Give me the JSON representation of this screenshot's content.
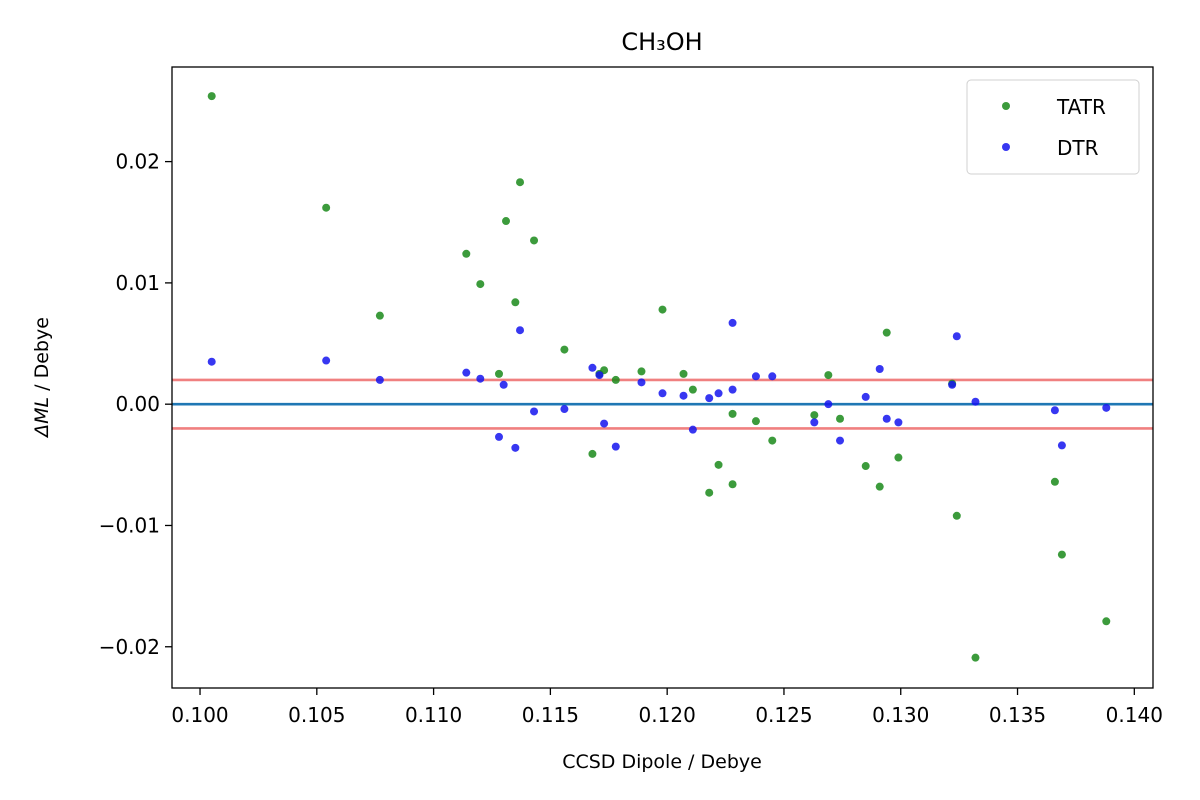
{
  "chart_data": {
    "type": "scatter",
    "title": "CH₃OH",
    "xlabel": "CCSD Dipole / Debye",
    "ylabel_symbol": "ΔML",
    "ylabel_unit": " / Debye",
    "xlim": [
      0.0988,
      0.1408
    ],
    "ylim": [
      -0.0234,
      0.0278
    ],
    "xticks": [
      0.1,
      0.105,
      0.11,
      0.115,
      0.12,
      0.125,
      0.13,
      0.135,
      0.14
    ],
    "xtick_labels": [
      "0.100",
      "0.105",
      "0.110",
      "0.115",
      "0.120",
      "0.125",
      "0.130",
      "0.135",
      "0.140"
    ],
    "yticks": [
      -0.02,
      -0.01,
      0.0,
      0.01,
      0.02
    ],
    "ytick_labels": [
      "−0.02",
      "−0.01",
      "0.00",
      "0.01",
      "0.02"
    ],
    "grid": false,
    "legend_position": "top-right",
    "hlines": [
      {
        "y": 0.0,
        "color": "#1f77b4"
      },
      {
        "y": 0.002,
        "color": "#f08080"
      },
      {
        "y": -0.002,
        "color": "#f08080"
      }
    ],
    "series": [
      {
        "name": "TATR",
        "color": "#1a8a1a",
        "points": [
          [
            0.1005,
            0.0254
          ],
          [
            0.1054,
            0.0162
          ],
          [
            0.1077,
            0.0073
          ],
          [
            0.1114,
            0.0124
          ],
          [
            0.112,
            0.0099
          ],
          [
            0.1128,
            0.0025
          ],
          [
            0.1131,
            0.0151
          ],
          [
            0.1135,
            0.0084
          ],
          [
            0.1137,
            0.0183
          ],
          [
            0.1143,
            0.0135
          ],
          [
            0.1156,
            0.0045
          ],
          [
            0.1168,
            -0.0041
          ],
          [
            0.1171,
            0.0025
          ],
          [
            0.1173,
            0.0028
          ],
          [
            0.1178,
            0.002
          ],
          [
            0.1189,
            0.0027
          ],
          [
            0.1198,
            0.0078
          ],
          [
            0.1207,
            0.0025
          ],
          [
            0.1211,
            0.0012
          ],
          [
            0.1218,
            -0.0073
          ],
          [
            0.1222,
            -0.005
          ],
          [
            0.1228,
            -0.0066
          ],
          [
            0.1228,
            -0.0008
          ],
          [
            0.1238,
            -0.0014
          ],
          [
            0.1245,
            -0.003
          ],
          [
            0.1263,
            -0.0009
          ],
          [
            0.1269,
            0.0024
          ],
          [
            0.1274,
            -0.0012
          ],
          [
            0.1285,
            -0.0051
          ],
          [
            0.1291,
            -0.0068
          ],
          [
            0.1294,
            0.0059
          ],
          [
            0.1299,
            -0.0044
          ],
          [
            0.1322,
            0.0017
          ],
          [
            0.1324,
            -0.0092
          ],
          [
            0.1332,
            -0.0209
          ],
          [
            0.1366,
            -0.0064
          ],
          [
            0.1369,
            -0.0124
          ],
          [
            0.1388,
            -0.0179
          ]
        ]
      },
      {
        "name": "DTR",
        "color": "#1414ee",
        "points": [
          [
            0.1005,
            0.0035
          ],
          [
            0.1054,
            0.0036
          ],
          [
            0.1077,
            0.002
          ],
          [
            0.1114,
            0.0026
          ],
          [
            0.112,
            0.0021
          ],
          [
            0.1128,
            -0.0027
          ],
          [
            0.113,
            0.0016
          ],
          [
            0.1135,
            -0.0036
          ],
          [
            0.1137,
            0.0061
          ],
          [
            0.1143,
            -0.0006
          ],
          [
            0.1156,
            -0.0004
          ],
          [
            0.1168,
            0.003
          ],
          [
            0.1171,
            0.0024
          ],
          [
            0.1173,
            -0.0016
          ],
          [
            0.1178,
            -0.0035
          ],
          [
            0.1189,
            0.0018
          ],
          [
            0.1198,
            0.0009
          ],
          [
            0.1207,
            0.0007
          ],
          [
            0.1211,
            -0.0021
          ],
          [
            0.1218,
            0.0005
          ],
          [
            0.1222,
            0.0009
          ],
          [
            0.1228,
            0.0067
          ],
          [
            0.1228,
            0.0012
          ],
          [
            0.1238,
            0.0023
          ],
          [
            0.1245,
            0.0023
          ],
          [
            0.1263,
            -0.0015
          ],
          [
            0.1269,
            0.0
          ],
          [
            0.1274,
            -0.003
          ],
          [
            0.1285,
            0.0006
          ],
          [
            0.1291,
            0.0029
          ],
          [
            0.1294,
            -0.0012
          ],
          [
            0.1299,
            -0.0015
          ],
          [
            0.1322,
            0.0016
          ],
          [
            0.1324,
            0.0056
          ],
          [
            0.1332,
            0.0002
          ],
          [
            0.1366,
            -0.0005
          ],
          [
            0.1369,
            -0.0034
          ],
          [
            0.1388,
            -0.0003
          ]
        ]
      }
    ]
  }
}
